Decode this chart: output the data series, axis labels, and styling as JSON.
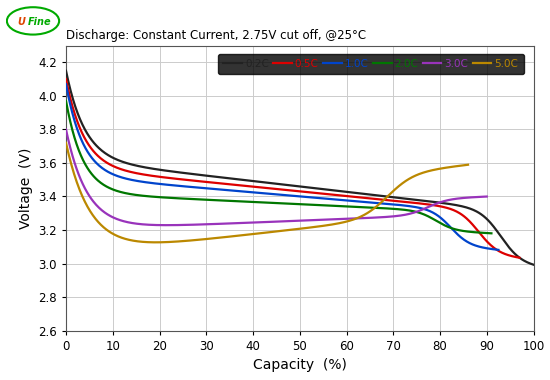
{
  "title": "Discharge: Constant Current, 2.75V cut off, @25°C",
  "xlabel": "Capacity  (%)",
  "ylabel": "Voltage  (V)",
  "xlim": [
    0,
    100
  ],
  "ylim": [
    2.6,
    4.3
  ],
  "xticks": [
    0,
    10,
    20,
    30,
    40,
    50,
    60,
    70,
    80,
    90,
    100
  ],
  "yticks": [
    2.6,
    2.8,
    3.0,
    3.2,
    3.4,
    3.6,
    3.8,
    4.0,
    4.2
  ],
  "series": [
    {
      "label": "0.2C",
      "color": "#222222",
      "params": {
        "v0": 4.15,
        "v_plateau": 3.62,
        "v_end": 2.75,
        "cap_end": 100.0,
        "tau_start": 0.04,
        "knee": 0.93,
        "drop_k": 45
      }
    },
    {
      "label": "0.5C",
      "color": "#dd0000",
      "params": {
        "v0": 4.1,
        "v_plateau": 3.57,
        "v_end": 2.75,
        "cap_end": 97.0,
        "tau_start": 0.04,
        "knee": 0.91,
        "drop_k": 45
      }
    },
    {
      "label": "1.0C",
      "color": "#0044cc",
      "params": {
        "v0": 4.07,
        "v_plateau": 3.52,
        "v_end": 2.75,
        "cap_end": 92.5,
        "tau_start": 0.04,
        "knee": 0.89,
        "drop_k": 45
      }
    },
    {
      "label": "2.0C",
      "color": "#007700",
      "params": {
        "v0": 3.97,
        "v_plateau": 3.42,
        "v_end": 2.75,
        "cap_end": 91.0,
        "tau_start": 0.04,
        "knee": 0.87,
        "drop_k": 45
      }
    },
    {
      "label": "3.0C",
      "color": "#9933bb",
      "params": {
        "v0": 3.8,
        "v_plateau": 3.2,
        "v_end": 2.75,
        "cap_end": 90.0,
        "tau_start": 0.05,
        "knee": 0.86,
        "drop_k": 40
      }
    },
    {
      "label": "5.0C",
      "color": "#bb8800",
      "params": {
        "v0": 3.72,
        "v_plateau": 3.05,
        "v_end": 2.77,
        "cap_end": 86.0,
        "tau_start": 0.06,
        "knee": 0.8,
        "drop_k": 30
      }
    }
  ],
  "background_color": "#ffffff",
  "grid_color": "#cccccc",
  "title_fontsize": 8.5,
  "label_fontsize": 10,
  "tick_fontsize": 8.5,
  "legend_fontsize": 7.5
}
